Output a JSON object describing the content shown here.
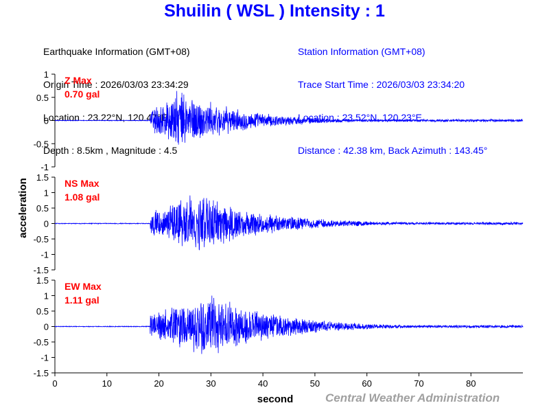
{
  "title": "Shuilin ( WSL ) Intensity : 1",
  "earthquake_info": {
    "header": "Earthquake Information (GMT+08)",
    "origin_time": "Origin Time : 2026/03/03 23:34:29",
    "location": "Location : 23.22°N, 120.47°E",
    "depth_magnitude": "Depth : 8.5km , Magnitude : 4.5"
  },
  "station_info": {
    "header": "Station Information (GMT+08)",
    "trace_start": "Trace Start Time : 2026/03/03 23:34:20",
    "location": "Location : 23.52°N, 120.23°E",
    "distance": "Distance : 42.38 km, Back Azimuth : 143.45°"
  },
  "footer": "Central Weather Administration",
  "colors": {
    "title": "#0000ff",
    "trace": "#0000ff",
    "max_label": "#ff0000",
    "footer": "#a0a0a0"
  },
  "chart_data": {
    "type": "line",
    "xlabel": "second",
    "ylabel": "acceleration",
    "xlim": [
      0,
      90
    ],
    "xticks": [
      "0",
      "10",
      "20",
      "30",
      "40",
      "50",
      "60",
      "70",
      "80"
    ],
    "x_start": 0,
    "x_end": 90,
    "p_arrival": 18.3,
    "panels": [
      {
        "component": "Z",
        "max_label": "Z Max",
        "max_value": "0.70 gal",
        "ylim": [
          -1,
          1
        ],
        "yticks": [
          "1",
          "0.5",
          "0",
          "-0.5",
          "-1"
        ],
        "peak": 0.7,
        "peak_time": 24,
        "decay": 0.09
      },
      {
        "component": "NS",
        "max_label": "NS Max",
        "max_value": "1.08 gal",
        "ylim": [
          -1.5,
          1.5
        ],
        "yticks": [
          "1.5",
          "1",
          "0.5",
          "0",
          "-0.5",
          "-1",
          "-1.5"
        ],
        "peak": 1.08,
        "peak_time": 27,
        "decay": 0.08
      },
      {
        "component": "EW",
        "max_label": "EW Max",
        "max_value": "1.11 gal",
        "ylim": [
          -1.5,
          1.5
        ],
        "yticks": [
          "1.5",
          "1",
          "0.5",
          "0",
          "-0.5",
          "-1",
          "-1.5"
        ],
        "peak": 1.11,
        "peak_time": 30,
        "decay": 0.08
      }
    ]
  }
}
